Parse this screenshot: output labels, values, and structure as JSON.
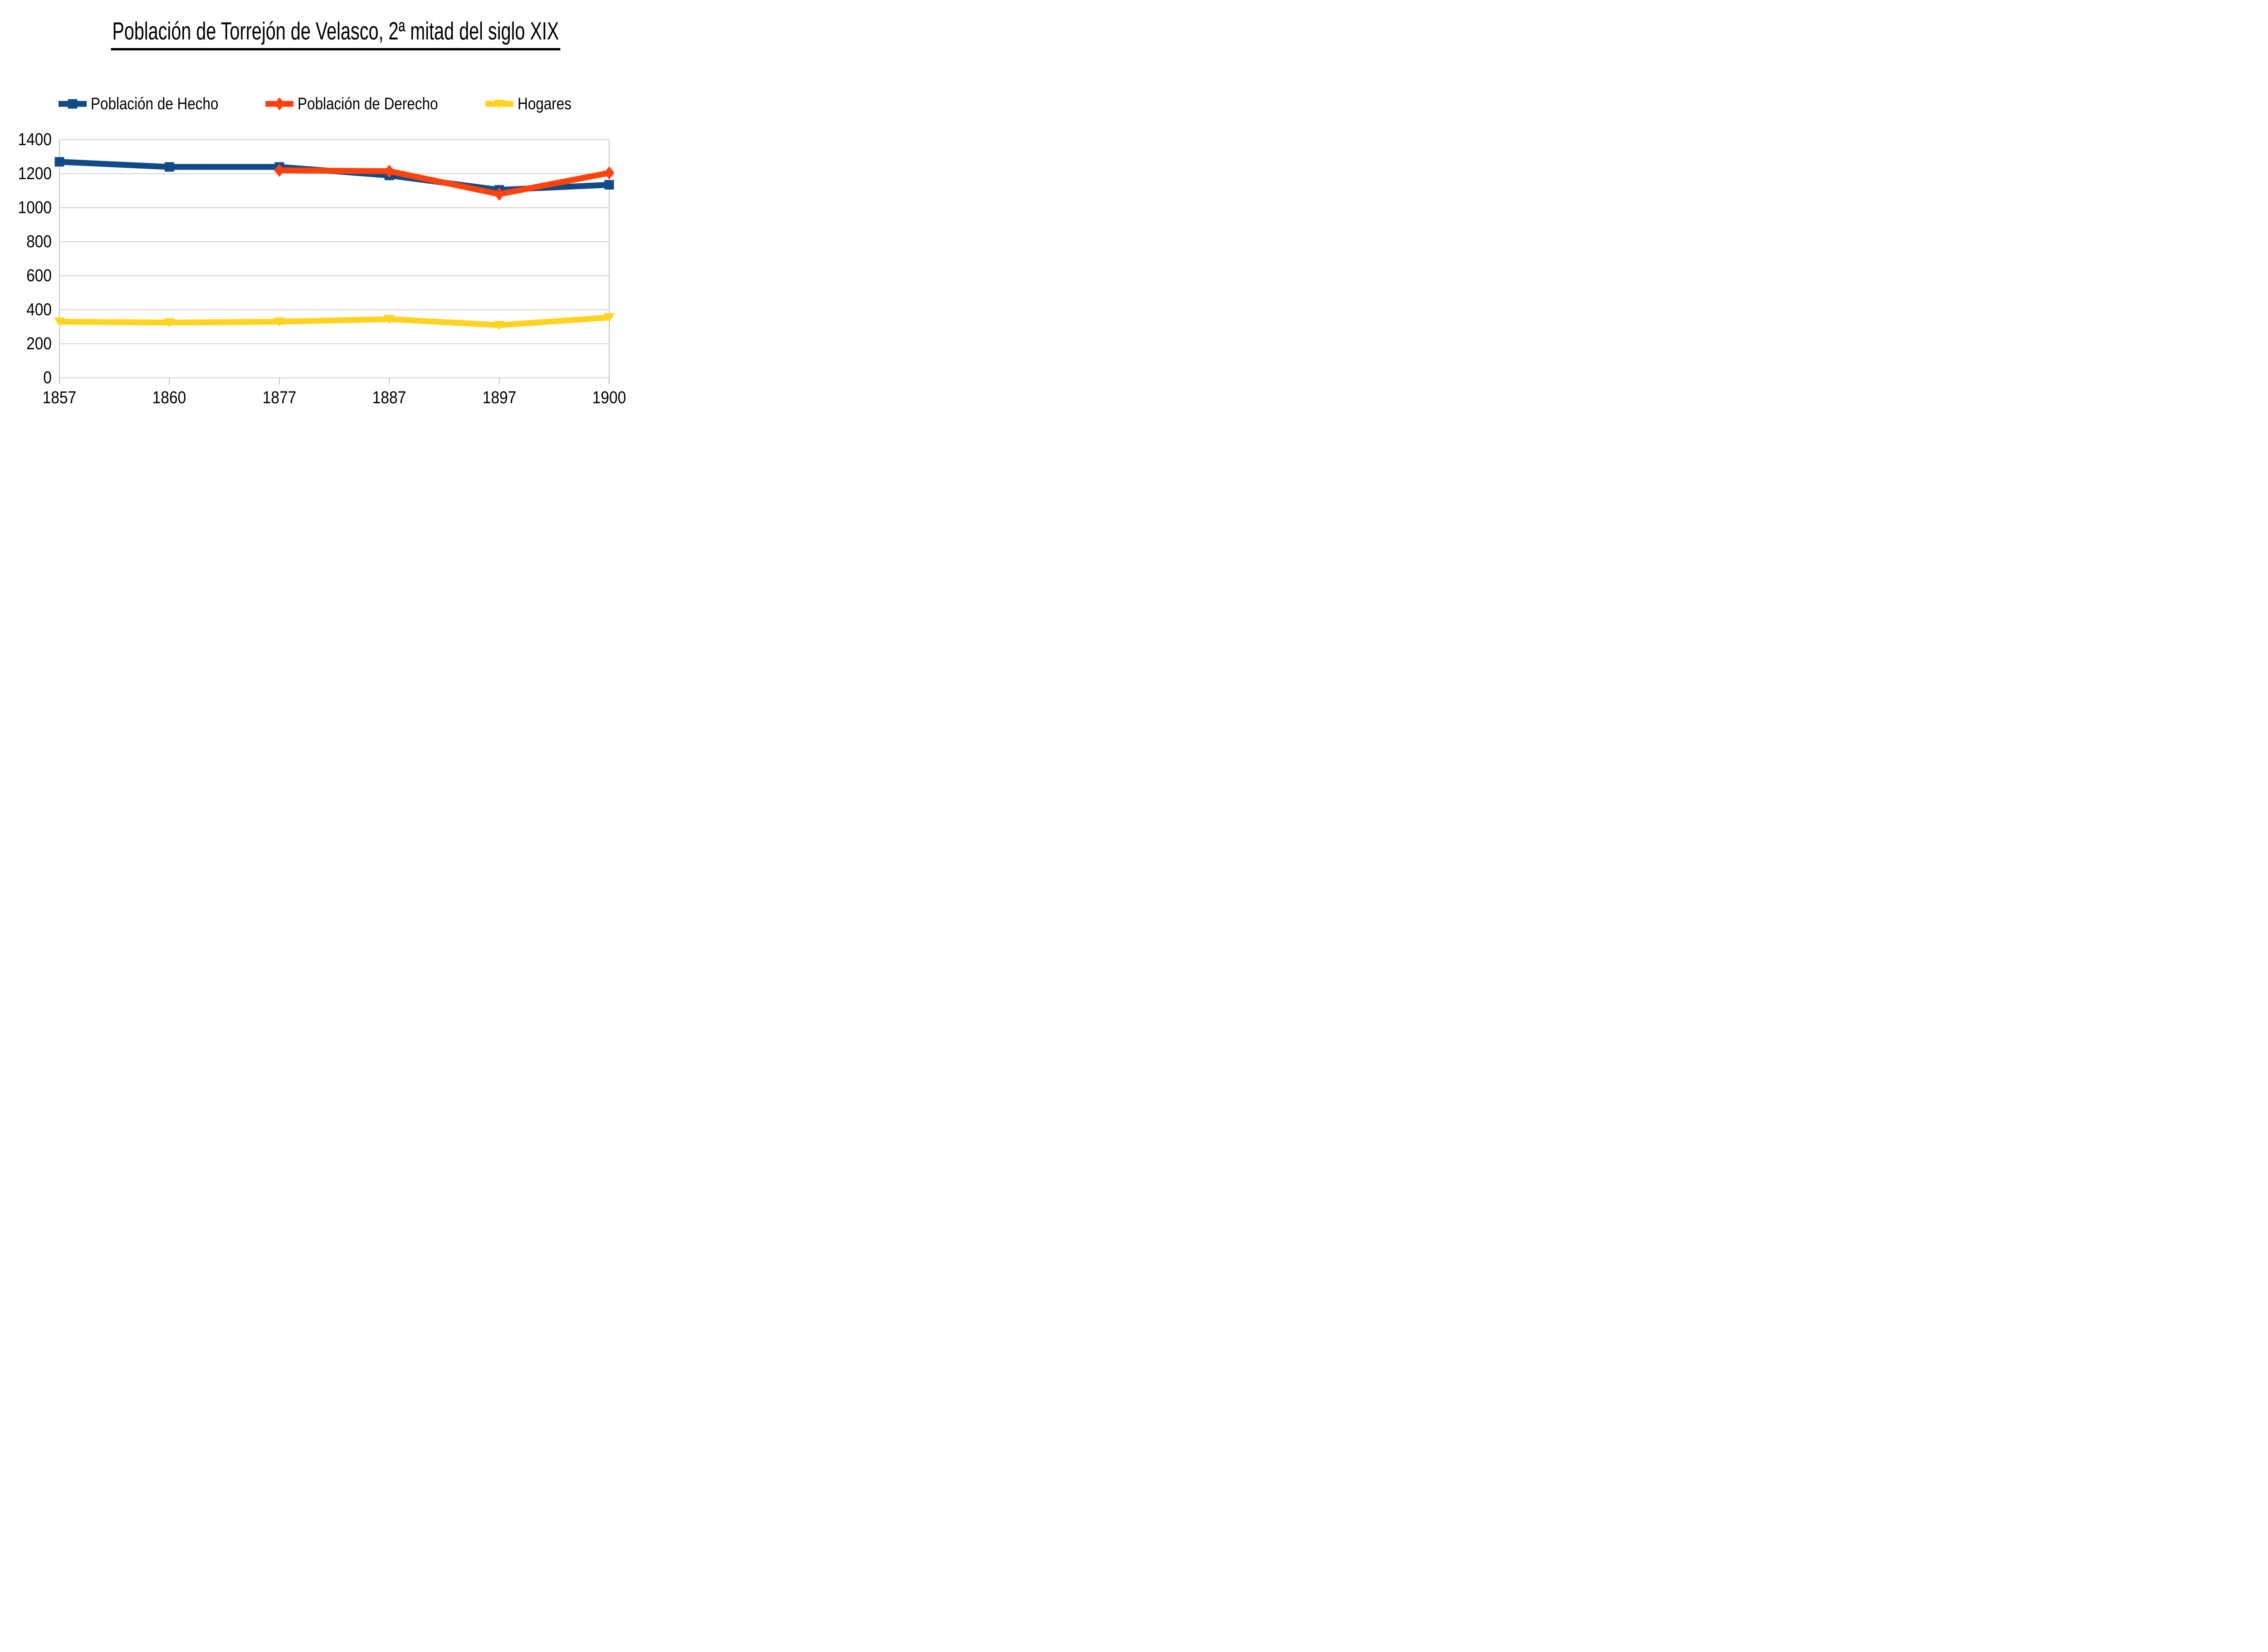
{
  "page_background": "#ffffff",
  "chart_data": {
    "type": "line",
    "title": "Población de Torrejón de Velasco, 2ª mitad del siglo XIX",
    "title_underlined": true,
    "categories": [
      "1857",
      "1860",
      "1877",
      "1887",
      "1897",
      "1900"
    ],
    "series": [
      {
        "name": "Población de Hecho",
        "color": "#114b87",
        "marker": "square",
        "values": [
          1270,
          1240,
          1240,
          1190,
          1105,
          1135
        ]
      },
      {
        "name": "Población de Derecho",
        "color": "#ff420e",
        "marker": "diamond",
        "values": [
          null,
          null,
          1220,
          1215,
          1080,
          1205
        ]
      },
      {
        "name": "Hogares",
        "color": "#ffd320",
        "marker": "triangle-down",
        "values": [
          330,
          325,
          330,
          345,
          310,
          355
        ]
      }
    ],
    "xlabel": "",
    "ylabel": "",
    "ylim": [
      0,
      1400
    ],
    "ytick_step": 200,
    "yticks": [
      "0",
      "200",
      "400",
      "600",
      "800",
      "1000",
      "1200",
      "1400"
    ],
    "grid": "horizontal",
    "gridline_color": "#c6c6c6",
    "axis_line_color": "#b3b3b3",
    "text_color": "#000000",
    "legend_position": "top"
  }
}
